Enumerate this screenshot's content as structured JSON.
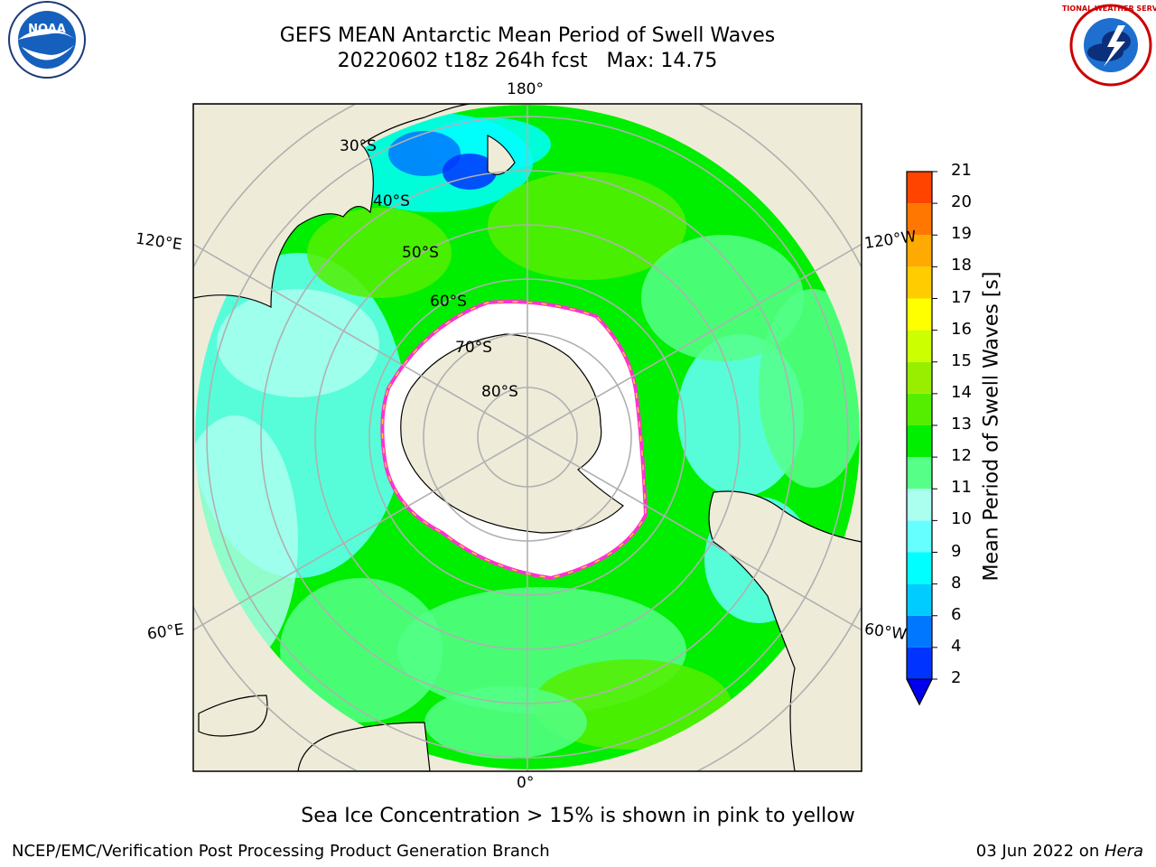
{
  "title": {
    "line1": "GEFS MEAN Antarctic Mean Period of Swell Waves",
    "line2": "20220602 t18z 264h fcst   Max: 14.75"
  },
  "map": {
    "projection": "south polar stereographic",
    "colors": {
      "land": "#eeecd9",
      "ocean_missing": "#ffffff",
      "sea_ice": "#ffffff",
      "sea_ice_edge_pink": "#ff33cc",
      "sea_ice_edge_yellow": "#ffcc33",
      "gridline": "#b0b0b0",
      "coastline": "#000000"
    },
    "longitude_labels": {
      "top": "180°",
      "bottom": "0°",
      "left_upper": "120°E",
      "left_lower": "60°E",
      "right_upper": "120°W",
      "right_lower": "60°W"
    },
    "latitude_labels": [
      "30°S",
      "40°S",
      "50°S",
      "60°S",
      "70°S",
      "80°S"
    ]
  },
  "colorbar": {
    "title": "Mean Period of Swell Waves [s]",
    "ticks": [
      "2",
      "4",
      "6",
      "8",
      "9",
      "10",
      "11",
      "12",
      "13",
      "14",
      "15",
      "16",
      "17",
      "18",
      "19",
      "20",
      "21"
    ],
    "colors": [
      "#0033ff",
      "#0077ff",
      "#00ccff",
      "#00ffff",
      "#66ffff",
      "#aaffee",
      "#55ff88",
      "#00ee00",
      "#55ee00",
      "#99ee00",
      "#ccff00",
      "#ffff00",
      "#ffcc00",
      "#ffaa00",
      "#ff7700",
      "#ff4400",
      "#ff0000"
    ],
    "extend_min_color": "#0000ee"
  },
  "note": "Sea Ice Concentration > 15% is shown in pink to yellow",
  "footer": {
    "credit": "NCEP/EMC/Verification Post Processing Product Generation Branch",
    "date_prefix": "03 Jun 2022 on ",
    "host": "Hera"
  },
  "logos": {
    "left": {
      "name": "noaa-logo",
      "text": "NOAA"
    },
    "right": {
      "name": "nws-logo",
      "text": "NATIONAL WEATHER SERVICE"
    }
  }
}
